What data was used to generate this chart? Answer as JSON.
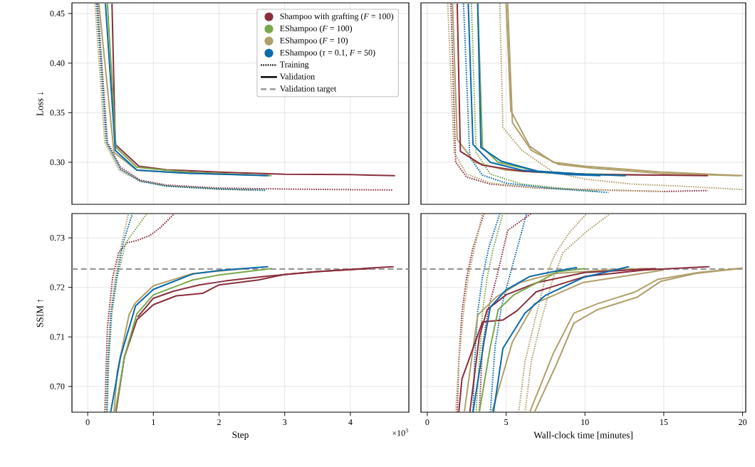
{
  "chart_data": [
    {
      "type": "line",
      "ylabel": "Loss ↓",
      "xlim": [
        -0.24,
        4.89
      ],
      "ylim": [
        0.2576,
        0.4608
      ],
      "xticks": [
        0,
        1,
        2,
        3,
        4
      ],
      "yticks": [
        {
          "value": 0.3,
          "label": "0.30"
        },
        0.35,
        {
          "value": 0.4,
          "label": "0.40"
        },
        0.45
      ],
      "tick_labels": "y",
      "grid": true,
      "legend": "top right",
      "annotations": [
        "Training",
        "Validation"
      ],
      "series": [
        {
          "name": "Shampoo with grafting (*F* = 100)",
          "color": "#8b2e3c",
          "line_style": "solid",
          "x": [
            0.37,
            0.42,
            0.78,
            1.2,
            2,
            3,
            4,
            4.68
          ],
          "values": [
            0.46,
            0.318,
            0.296,
            0.2925,
            0.29,
            0.288,
            0.2875,
            0.2865
          ]
        },
        {
          "name": "EShampoo (*F* = 100)",
          "color": "#7aa84a",
          "line_style": "solid",
          "x": [
            0.3,
            0.43,
            0.75,
            1.5,
            2.8
          ],
          "values": [
            0.46,
            0.315,
            0.295,
            0.29,
            0.2865
          ]
        },
        {
          "name": "EShampoo (*F* = 10)",
          "color": "#b09f6a",
          "line_style": "solid",
          "x": [
            0.17,
            0.4,
            0.75,
            1.5,
            2.7
          ],
          "values": [
            0.46,
            0.31,
            0.292,
            0.289,
            0.2868
          ]
        },
        {
          "name": "EShampoo (*τ* = 0.1, *F* = 50)",
          "color": "#0a6aab",
          "line_style": "solid",
          "x": [
            0.27,
            0.42,
            0.75,
            1.5,
            2.75
          ],
          "values": [
            0.46,
            0.312,
            0.292,
            0.289,
            0.2865
          ]
        },
        {
          "color": "#8b2e3c",
          "line_style": "dotted",
          "x": [
            0.15,
            0.3,
            0.5,
            0.8,
            1.2,
            2,
            3,
            4.65
          ],
          "values": [
            0.46,
            0.32,
            0.295,
            0.282,
            0.277,
            0.274,
            0.273,
            0.272
          ]
        },
        {
          "color": "#7aa84a",
          "line_style": "dotted",
          "x": [
            0.13,
            0.28,
            0.5,
            0.8,
            1.2,
            2,
            2.7
          ],
          "values": [
            0.46,
            0.32,
            0.293,
            0.281,
            0.276,
            0.273,
            0.2715
          ]
        },
        {
          "color": "#b09f6a",
          "line_style": "dotted",
          "x": [
            0.11,
            0.26,
            0.48,
            0.8,
            1.2,
            2,
            2.5
          ],
          "values": [
            0.46,
            0.32,
            0.292,
            0.281,
            0.276,
            0.273,
            0.272
          ]
        },
        {
          "color": "#0a6aab",
          "line_style": "dotted",
          "x": [
            0.14,
            0.29,
            0.5,
            0.8,
            1.2,
            2,
            2.7
          ],
          "values": [
            0.46,
            0.32,
            0.293,
            0.281,
            0.276,
            0.273,
            0.272
          ]
        }
      ]
    },
    {
      "type": "line",
      "xlim": [
        -0.4,
        20.2
      ],
      "ylim": [
        0.2576,
        0.4608
      ],
      "xticks": [
        0,
        5,
        10,
        15,
        20
      ],
      "yticks": [
        0.3,
        0.35,
        0.4,
        0.45
      ],
      "tick_labels": false,
      "grid": true,
      "series": [
        {
          "color": "#8b2e3c",
          "line_style": "dotted",
          "x": [
            1.5,
            1.8,
            2.5,
            4,
            7,
            10,
            15,
            17.8
          ],
          "values": [
            0.46,
            0.3,
            0.285,
            0.278,
            0.274,
            0.2725,
            0.2705,
            0.2715
          ]
        },
        {
          "color": "#b09f6a",
          "line_style": "dotted",
          "x": [
            1.3,
            1.7,
            2.5,
            4,
            7,
            10,
            15
          ],
          "values": [
            0.46,
            0.31,
            0.288,
            0.279,
            0.274,
            0.2725,
            0.2705
          ]
        },
        {
          "color": "#b09f6a",
          "line_style": "dotted",
          "x": [
            4.6,
            4.8,
            6,
            8,
            10,
            13,
            16,
            20
          ],
          "values": [
            0.46,
            0.335,
            0.312,
            0.29,
            0.283,
            0.278,
            0.276,
            0.2725
          ]
        },
        {
          "color": "#7aa84a",
          "line_style": "dotted",
          "x": [
            2.8,
            3.1,
            4,
            6,
            9,
            10.8
          ],
          "values": [
            0.46,
            0.31,
            0.288,
            0.278,
            0.273,
            0.2705
          ]
        },
        {
          "color": "#0a6aab",
          "line_style": "dotted",
          "x": [
            2.3,
            2.7,
            3.5,
            5,
            8,
            11.5
          ],
          "values": [
            0.46,
            0.305,
            0.287,
            0.279,
            0.2735,
            0.2695
          ]
        },
        {
          "color": "#b09f6a",
          "line_style": "solid",
          "x": [
            1.6,
            1.9,
            3,
            5,
            8,
            12,
            14.5
          ],
          "values": [
            0.46,
            0.323,
            0.3,
            0.292,
            0.289,
            0.2875,
            0.2868
          ]
        },
        {
          "color": "#b09f6a",
          "line_style": "solid",
          "x": [
            5,
            5.3,
            6.5,
            8,
            10,
            12.6,
            15,
            20
          ],
          "values": [
            0.46,
            0.352,
            0.316,
            0.3,
            0.296,
            0.293,
            0.29,
            0.2865
          ]
        },
        {
          "color": "#b09f6a",
          "line_style": "solid",
          "x": [
            5.1,
            5.4,
            6.6,
            8.3,
            10.5,
            13,
            15,
            19.8
          ],
          "values": [
            0.46,
            0.34,
            0.312,
            0.298,
            0.294,
            0.291,
            0.2885,
            0.2865
          ]
        },
        {
          "color": "#8b2e3c",
          "line_style": "solid",
          "x": [
            1.9,
            2.1,
            3.5,
            6,
            10,
            17.8
          ],
          "values": [
            0.46,
            0.311,
            0.297,
            0.291,
            0.288,
            0.2865
          ]
        },
        {
          "color": "#7aa84a",
          "line_style": "solid",
          "x": [
            3.2,
            3.5,
            4.5,
            7,
            10,
            12.5
          ],
          "values": [
            0.46,
            0.315,
            0.3,
            0.291,
            0.288,
            0.2865
          ]
        },
        {
          "color": "#0a6aab",
          "line_style": "solid",
          "x": [
            2.6,
            2.9,
            4,
            6,
            9,
            11
          ],
          "values": [
            0.46,
            0.318,
            0.3,
            0.292,
            0.2875,
            0.2865
          ]
        },
        {
          "color": "#0a6aab",
          "line_style": "solid",
          "x": [
            3.2,
            3.4,
            4.7,
            7,
            10,
            12.6
          ],
          "values": [
            0.46,
            0.315,
            0.301,
            0.291,
            0.288,
            0.2865
          ]
        }
      ]
    },
    {
      "type": "line",
      "xlabel": "Step",
      "ylabel": "SSIM ↑",
      "xlim": [
        -0.24,
        4.89
      ],
      "ylim": [
        0.6948,
        0.7349
      ],
      "xticks": [
        0,
        1,
        2,
        3,
        4
      ],
      "yticks": [
        {
          "value": 0.7,
          "label": "0.70"
        },
        0.71,
        0.72,
        0.73
      ],
      "grid": true,
      "annotations": [
        "×10$^{3}$"
      ],
      "ref_lines": [
        {
          "axis": "y",
          "value": 0.7237,
          "label": "Validation target",
          "color": "#999999",
          "line_style": "dashed"
        }
      ],
      "series": [
        {
          "color": "#8b2e3c",
          "line_style": "dotted",
          "x": [
            0.26,
            0.3,
            0.38,
            0.47,
            0.6,
            0.76,
            0.95,
            1.1,
            1.32
          ],
          "values": [
            0.6948,
            0.712,
            0.722,
            0.727,
            0.729,
            0.7295,
            0.7305,
            0.732,
            0.7349
          ]
        },
        {
          "color": "#7aa84a",
          "line_style": "dotted",
          "x": [
            0.3,
            0.32,
            0.37,
            0.45,
            0.58,
            0.9
          ],
          "values": [
            0.6948,
            0.705,
            0.715,
            0.722,
            0.729,
            0.7349
          ]
        },
        {
          "color": "#b09f6a",
          "line_style": "dotted",
          "x": [
            0.28,
            0.3,
            0.35,
            0.42,
            0.52,
            0.62
          ],
          "values": [
            0.6948,
            0.705,
            0.715,
            0.722,
            0.729,
            0.7349
          ]
        },
        {
          "color": "#0a6aab",
          "line_style": "dotted",
          "x": [
            0.29,
            0.31,
            0.36,
            0.44,
            0.54,
            0.68
          ],
          "values": [
            0.6948,
            0.705,
            0.715,
            0.722,
            0.729,
            0.7349
          ]
        },
        {
          "color": "#8b2e3c",
          "line_style": "solid",
          "x": [
            0.43,
            0.56,
            0.75,
            1,
            1.35,
            1.75,
            2,
            2.6,
            3,
            3.5,
            4.66
          ],
          "values": [
            0.6948,
            0.706,
            0.7135,
            0.7165,
            0.7183,
            0.7188,
            0.7205,
            0.7215,
            0.7226,
            0.7232,
            0.7242
          ]
        },
        {
          "color": "#8b2e3c",
          "line_style": "solid",
          "x": [
            0.76,
            1,
            1.3,
            1.7,
            2.1,
            2.7,
            3.5,
            4.3
          ],
          "values": [
            0.714,
            0.7178,
            0.7192,
            0.7205,
            0.7213,
            0.7222,
            0.7232,
            0.7238
          ]
        },
        {
          "color": "#7aa84a",
          "line_style": "solid",
          "x": [
            0.42,
            0.56,
            0.75,
            1,
            1.6,
            2,
            2.8
          ],
          "values": [
            0.6948,
            0.706,
            0.7147,
            0.7185,
            0.7215,
            0.7225,
            0.7238
          ]
        },
        {
          "color": "#b09f6a",
          "line_style": "solid",
          "x": [
            0.4,
            0.45,
            0.63,
            0.72,
            1,
            1.6,
            2.4
          ],
          "values": [
            0.6948,
            0.703,
            0.7145,
            0.7168,
            0.7203,
            0.7228,
            0.7238
          ]
        },
        {
          "color": "#0a6aab",
          "line_style": "solid",
          "x": [
            0.35,
            0.5,
            0.73,
            1,
            1.6,
            2,
            2.75
          ],
          "values": [
            0.6948,
            0.706,
            0.7163,
            0.7196,
            0.7227,
            0.7234,
            0.7242
          ]
        }
      ]
    },
    {
      "type": "line",
      "xlabel": "Wall-clock time [minutes]",
      "xlim": [
        -0.4,
        20.2
      ],
      "ylim": [
        0.6948,
        0.7349
      ],
      "xticks": [
        0,
        5,
        10,
        15,
        20
      ],
      "yticks": [
        0.7,
        0.71,
        0.72,
        0.73
      ],
      "tick_labels": "x",
      "grid": true,
      "ref_lines": [
        {
          "axis": "y",
          "value": 0.7237,
          "color": "#999999",
          "line_style": "dashed"
        }
      ],
      "series": [
        {
          "color": "#8b2e3c",
          "line_style": "dotted",
          "x": [
            1.9,
            2,
            2.2,
            2.5,
            2.9,
            3.6
          ],
          "values": [
            0.6948,
            0.705,
            0.715,
            0.722,
            0.728,
            0.7349
          ]
        },
        {
          "color": "#b09f6a",
          "line_style": "dotted",
          "x": [
            1.8,
            2,
            2.3,
            2.6,
            3,
            3.5
          ],
          "values": [
            0.6948,
            0.705,
            0.715,
            0.722,
            0.728,
            0.7349
          ]
        },
        {
          "color": "#0a6aab",
          "line_style": "dotted",
          "x": [
            2.9,
            3,
            3.2,
            3.5,
            3.9,
            4.6
          ],
          "values": [
            0.6948,
            0.705,
            0.715,
            0.722,
            0.728,
            0.7349
          ]
        },
        {
          "color": "#7aa84a",
          "line_style": "dotted",
          "x": [
            3.1,
            3.3,
            3.5,
            3.8,
            4.2,
            4.8
          ],
          "values": [
            0.6948,
            0.705,
            0.715,
            0.722,
            0.728,
            0.7349
          ]
        },
        {
          "color": "#8b2e3c",
          "line_style": "dotted",
          "x": [
            3.3,
            3.5,
            3.9,
            4.4,
            5.1,
            6.6
          ],
          "values": [
            0.6948,
            0.708,
            0.716,
            0.722,
            0.7315,
            0.7349
          ]
        },
        {
          "color": "#0a6aab",
          "line_style": "dotted",
          "x": [
            4,
            4.3,
            4.7,
            5.2,
            5.8,
            6.3
          ],
          "values": [
            0.6948,
            0.708,
            0.716,
            0.722,
            0.729,
            0.7349
          ]
        },
        {
          "color": "#b09f6a",
          "line_style": "dotted",
          "x": [
            5.8,
            6.2,
            6.8,
            7.5,
            8.1,
            9,
            10.1
          ],
          "values": [
            0.6948,
            0.705,
            0.713,
            0.722,
            0.7267,
            0.731,
            0.7349
          ]
        },
        {
          "color": "#b09f6a",
          "line_style": "dotted",
          "x": [
            6.2,
            6.6,
            7.2,
            7.9,
            8.6,
            10,
            11.6
          ],
          "values": [
            0.6948,
            0.705,
            0.713,
            0.721,
            0.727,
            0.731,
            0.7349
          ]
        },
        {
          "color": "#b09f6a",
          "line_style": "solid",
          "x": [
            2.35,
            3.2,
            4.4,
            5.9,
            8,
            10,
            12,
            14
          ],
          "values": [
            0.6948,
            0.7144,
            0.7181,
            0.721,
            0.7228,
            0.7232,
            0.7236,
            0.7238
          ]
        },
        {
          "color": "#b09f6a",
          "line_style": "solid",
          "x": [
            4.1,
            5.4,
            6.8,
            9.9,
            13,
            15
          ],
          "values": [
            0.6948,
            0.709,
            0.7167,
            0.721,
            0.7225,
            0.7235
          ]
        },
        {
          "color": "#b09f6a",
          "line_style": "solid",
          "x": [
            6.5,
            8,
            9.3,
            10.8,
            13.2,
            14.6,
            17.2,
            20
          ],
          "values": [
            0.6948,
            0.7067,
            0.7148,
            0.7167,
            0.7191,
            0.7216,
            0.723,
            0.7239
          ]
        },
        {
          "color": "#b09f6a",
          "line_style": "solid",
          "x": [
            6.8,
            8.2,
            9.3,
            10.8,
            13.3,
            14.8,
            17,
            19.8
          ],
          "values": [
            0.6948,
            0.7045,
            0.7128,
            0.7155,
            0.718,
            0.7212,
            0.7228,
            0.7238
          ]
        },
        {
          "color": "#8b2e3c",
          "line_style": "solid",
          "x": [
            2,
            2.2,
            3.5,
            4.8,
            5.7,
            6.9,
            10,
            13.8,
            17.9
          ],
          "values": [
            0.6948,
            0.7015,
            0.713,
            0.7134,
            0.7153,
            0.7191,
            0.7222,
            0.7235,
            0.7242
          ]
        },
        {
          "color": "#8b2e3c",
          "line_style": "solid",
          "x": [
            2.7,
            3.3,
            3.8,
            5,
            7,
            10,
            14.5
          ],
          "values": [
            0.6948,
            0.71,
            0.7155,
            0.7185,
            0.721,
            0.723,
            0.7238
          ]
        },
        {
          "color": "#7aa84a",
          "line_style": "solid",
          "x": [
            3.3,
            4,
            4.5,
            5.5,
            7,
            8.3,
            10
          ],
          "values": [
            0.6948,
            0.708,
            0.7155,
            0.7185,
            0.721,
            0.7232,
            0.7238
          ]
        },
        {
          "color": "#0a6aab",
          "line_style": "solid",
          "x": [
            2.9,
            3.6,
            4,
            5,
            6.5,
            8,
            9.5
          ],
          "values": [
            0.6948,
            0.709,
            0.716,
            0.7195,
            0.7222,
            0.7232,
            0.724
          ]
        },
        {
          "color": "#0a6aab",
          "line_style": "solid",
          "x": [
            4.2,
            4.8,
            6.2,
            7.5,
            9.9,
            12.8
          ],
          "values": [
            0.6948,
            0.7077,
            0.7148,
            0.7184,
            0.722,
            0.7242
          ]
        }
      ]
    }
  ]
}
